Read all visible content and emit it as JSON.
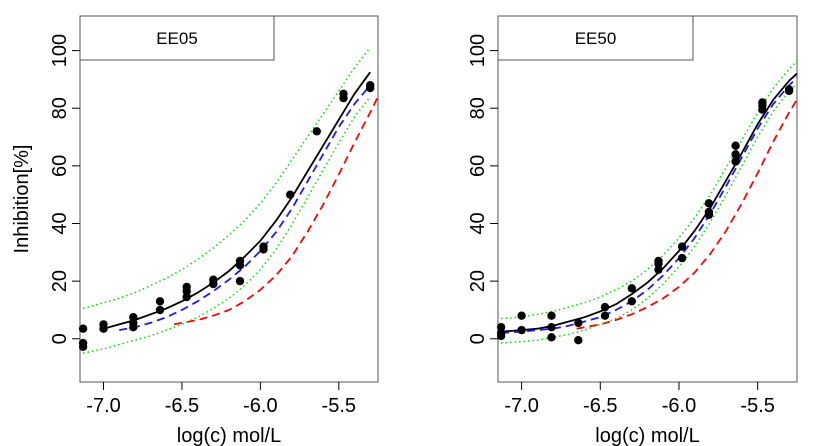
{
  "chart_data": [
    {
      "type": "scatter",
      "strip_label": "EE05",
      "xlabel": "log(c) mol/L",
      "ylabel": "Inhibition[%]",
      "xlim": [
        -7.15,
        -5.25
      ],
      "ylim": [
        -15,
        112
      ],
      "xticks": [
        -7.0,
        -6.5,
        -6.0,
        -5.5
      ],
      "xtick_labels": [
        "-7.0",
        "-6.5",
        "-6.0",
        "-5.5"
      ],
      "yticks": [
        0,
        20,
        40,
        60,
        80,
        100
      ],
      "ytick_labels": [
        "0",
        "20",
        "40",
        "60",
        "80",
        "100"
      ],
      "points": [
        {
          "x": -7.13,
          "y": 3.5
        },
        {
          "x": -7.13,
          "y": -1.5
        },
        {
          "x": -7.13,
          "y": -2.8
        },
        {
          "x": -7.0,
          "y": 5.0
        },
        {
          "x": -7.0,
          "y": 3.5
        },
        {
          "x": -6.81,
          "y": 7.5
        },
        {
          "x": -6.81,
          "y": 5.5
        },
        {
          "x": -6.81,
          "y": 4.0
        },
        {
          "x": -6.64,
          "y": 13.0
        },
        {
          "x": -6.64,
          "y": 10.0
        },
        {
          "x": -6.47,
          "y": 18.0
        },
        {
          "x": -6.47,
          "y": 16.5
        },
        {
          "x": -6.47,
          "y": 14.5
        },
        {
          "x": -6.3,
          "y": 20.5
        },
        {
          "x": -6.3,
          "y": 19.0
        },
        {
          "x": -6.13,
          "y": 27.0
        },
        {
          "x": -6.13,
          "y": 25.5
        },
        {
          "x": -6.13,
          "y": 20.0
        },
        {
          "x": -5.98,
          "y": 32.0
        },
        {
          "x": -5.98,
          "y": 31.0
        },
        {
          "x": -5.81,
          "y": 50.0
        },
        {
          "x": -5.64,
          "y": 72.0
        },
        {
          "x": -5.47,
          "y": 85.0
        },
        {
          "x": -5.47,
          "y": 83.5
        },
        {
          "x": -5.3,
          "y": 88.0
        },
        {
          "x": -5.3,
          "y": 87.0
        }
      ],
      "series": [
        {
          "style": "solid",
          "color": "#000000",
          "x": [
            -7.0,
            -6.9,
            -6.8,
            -6.7,
            -6.6,
            -6.5,
            -6.4,
            -6.3,
            -6.2,
            -6.1,
            -6.0,
            -5.9,
            -5.8,
            -5.7,
            -5.6,
            -5.5,
            -5.4,
            -5.3
          ],
          "y": [
            3.5,
            5.0,
            6.5,
            8.5,
            10.5,
            13.0,
            16.0,
            19.5,
            23.5,
            28.5,
            34.0,
            41.0,
            49.0,
            58.0,
            67.0,
            76.0,
            85.0,
            92.5
          ]
        },
        {
          "style": "dashed",
          "color": "#1a1aff",
          "x": [
            -6.9,
            -6.8,
            -6.7,
            -6.6,
            -6.5,
            -6.4,
            -6.3,
            -6.2,
            -6.1,
            -6.0,
            -5.9,
            -5.8,
            -5.7,
            -5.6,
            -5.5,
            -5.4,
            -5.3
          ],
          "y": [
            3.0,
            4.0,
            5.5,
            7.5,
            10.0,
            13.0,
            16.5,
            20.5,
            25.0,
            30.5,
            37.0,
            45.0,
            54.5,
            64.0,
            73.5,
            81.5,
            88.0
          ]
        },
        {
          "style": "dashed",
          "color": "#ff0000",
          "x": [
            -6.55,
            -6.4,
            -6.3,
            -6.2,
            -6.1,
            -6.0,
            -5.9,
            -5.8,
            -5.7,
            -5.6,
            -5.5,
            -5.4,
            -5.3,
            -5.25
          ],
          "y": [
            5.0,
            6.5,
            8.0,
            10.0,
            13.0,
            17.0,
            22.0,
            28.5,
            37.0,
            46.5,
            57.0,
            68.0,
            78.5,
            84.0
          ]
        },
        {
          "style": "dotted",
          "color": "#00dd00",
          "x": [
            -7.13,
            -7.0,
            -6.9,
            -6.8,
            -6.7,
            -6.6,
            -6.5,
            -6.4,
            -6.3,
            -6.2,
            -6.1,
            -6.0,
            -5.9,
            -5.8,
            -5.7,
            -5.6,
            -5.5,
            -5.4,
            -5.3
          ],
          "y": [
            10.5,
            12.5,
            14.0,
            16.0,
            18.5,
            21.0,
            24.0,
            27.5,
            31.5,
            36.0,
            41.0,
            47.0,
            54.0,
            62.0,
            70.0,
            78.0,
            86.0,
            94.0,
            101.0
          ]
        },
        {
          "style": "dotted",
          "color": "#00dd00",
          "x": [
            -7.13,
            -7.0,
            -6.9,
            -6.8,
            -6.7,
            -6.6,
            -6.5,
            -6.4,
            -6.3,
            -6.2,
            -6.1,
            -6.0,
            -5.9,
            -5.8,
            -5.7,
            -5.6,
            -5.5,
            -5.4,
            -5.3
          ],
          "y": [
            -5.0,
            -3.5,
            -2.0,
            -0.5,
            1.0,
            3.0,
            5.0,
            7.5,
            10.5,
            14.0,
            18.5,
            24.0,
            31.0,
            39.5,
            49.0,
            58.5,
            68.0,
            77.0,
            84.0
          ]
        }
      ]
    },
    {
      "type": "scatter",
      "strip_label": "EE50",
      "xlabel": "log(c) mol/L",
      "ylabel": "",
      "xlim": [
        -7.15,
        -5.25
      ],
      "ylim": [
        -15,
        112
      ],
      "xticks": [
        -7.0,
        -6.5,
        -6.0,
        -5.5
      ],
      "xtick_labels": [
        "-7.0",
        "-6.5",
        "-6.0",
        "-5.5"
      ],
      "yticks": [
        0,
        20,
        40,
        60,
        80,
        100
      ],
      "ytick_labels": [
        "0",
        "20",
        "40",
        "60",
        "80",
        "100"
      ],
      "points": [
        {
          "x": -7.13,
          "y": 4.0
        },
        {
          "x": -7.13,
          "y": 2.0
        },
        {
          "x": -7.13,
          "y": 1.0
        },
        {
          "x": -7.0,
          "y": 8.0
        },
        {
          "x": -7.0,
          "y": 3.0
        },
        {
          "x": -6.81,
          "y": 8.0
        },
        {
          "x": -6.81,
          "y": 4.0
        },
        {
          "x": -6.81,
          "y": 0.5
        },
        {
          "x": -6.64,
          "y": 5.5
        },
        {
          "x": -6.64,
          "y": -0.5
        },
        {
          "x": -6.47,
          "y": 11.0
        },
        {
          "x": -6.47,
          "y": 8.0
        },
        {
          "x": -6.3,
          "y": 17.5
        },
        {
          "x": -6.3,
          "y": 13.0
        },
        {
          "x": -6.13,
          "y": 27.0
        },
        {
          "x": -6.13,
          "y": 26.0
        },
        {
          "x": -6.13,
          "y": 24.0
        },
        {
          "x": -5.98,
          "y": 32.0
        },
        {
          "x": -5.98,
          "y": 28.0
        },
        {
          "x": -5.81,
          "y": 47.0
        },
        {
          "x": -5.81,
          "y": 44.0
        },
        {
          "x": -5.81,
          "y": 43.0
        },
        {
          "x": -5.64,
          "y": 67.0
        },
        {
          "x": -5.64,
          "y": 64.0
        },
        {
          "x": -5.64,
          "y": 61.5
        },
        {
          "x": -5.47,
          "y": 82.0
        },
        {
          "x": -5.47,
          "y": 81.0
        },
        {
          "x": -5.47,
          "y": 79.5
        },
        {
          "x": -5.3,
          "y": 86.5
        },
        {
          "x": -5.3,
          "y": 86.0
        }
      ],
      "series": [
        {
          "style": "solid",
          "color": "#000000",
          "x": [
            -7.13,
            -7.0,
            -6.9,
            -6.8,
            -6.7,
            -6.6,
            -6.5,
            -6.4,
            -6.3,
            -6.2,
            -6.1,
            -6.0,
            -5.9,
            -5.8,
            -5.7,
            -5.6,
            -5.5,
            -5.4,
            -5.3,
            -5.25
          ],
          "y": [
            2.5,
            3.0,
            3.5,
            4.5,
            6.0,
            7.5,
            9.5,
            12.0,
            15.5,
            19.5,
            24.5,
            30.5,
            37.5,
            45.5,
            55.0,
            64.5,
            74.5,
            83.0,
            89.5,
            92.0
          ]
        },
        {
          "style": "dashed",
          "color": "#1a1aff",
          "x": [
            -7.13,
            -7.0,
            -6.9,
            -6.8,
            -6.7,
            -6.6,
            -6.5,
            -6.4,
            -6.3,
            -6.2,
            -6.1,
            -6.0,
            -5.9,
            -5.8,
            -5.7,
            -5.6,
            -5.5,
            -5.4,
            -5.3,
            -5.25
          ],
          "y": [
            2.0,
            2.5,
            3.0,
            3.5,
            4.5,
            6.0,
            7.5,
            10.0,
            13.0,
            17.0,
            22.0,
            28.0,
            35.0,
            43.5,
            53.0,
            63.0,
            73.0,
            81.5,
            88.0,
            90.5
          ]
        },
        {
          "style": "dashed",
          "color": "#ff0000",
          "x": [
            -6.65,
            -6.5,
            -6.4,
            -6.3,
            -6.2,
            -6.1,
            -6.0,
            -5.9,
            -5.8,
            -5.7,
            -5.6,
            -5.5,
            -5.4,
            -5.3,
            -5.25
          ],
          "y": [
            3.5,
            5.0,
            6.5,
            8.5,
            11.0,
            14.0,
            18.0,
            23.0,
            29.5,
            37.5,
            47.0,
            57.5,
            68.5,
            78.5,
            83.0
          ]
        },
        {
          "style": "dotted",
          "color": "#00dd00",
          "x": [
            -7.13,
            -7.0,
            -6.9,
            -6.8,
            -6.7,
            -6.6,
            -6.5,
            -6.4,
            -6.3,
            -6.2,
            -6.1,
            -6.0,
            -5.9,
            -5.8,
            -5.7,
            -5.6,
            -5.5,
            -5.4,
            -5.3,
            -5.25
          ],
          "y": [
            7.0,
            7.5,
            8.5,
            9.5,
            11.0,
            12.5,
            14.5,
            17.0,
            20.0,
            24.0,
            29.0,
            35.0,
            42.0,
            50.0,
            59.5,
            69.0,
            78.5,
            87.0,
            93.5,
            96.5
          ]
        },
        {
          "style": "dotted",
          "color": "#00dd00",
          "x": [
            -7.13,
            -7.0,
            -6.9,
            -6.8,
            -6.7,
            -6.6,
            -6.5,
            -6.4,
            -6.3,
            -6.2,
            -6.1,
            -6.0,
            -5.9,
            -5.8,
            -5.7,
            -5.6,
            -5.5,
            -5.4,
            -5.3,
            -5.25
          ],
          "y": [
            -1.5,
            -1.0,
            -0.5,
            0.5,
            1.5,
            3.0,
            5.0,
            7.0,
            10.0,
            14.0,
            19.0,
            25.0,
            32.0,
            40.5,
            50.0,
            60.0,
            70.0,
            79.0,
            86.0,
            88.5
          ]
        }
      ]
    }
  ]
}
